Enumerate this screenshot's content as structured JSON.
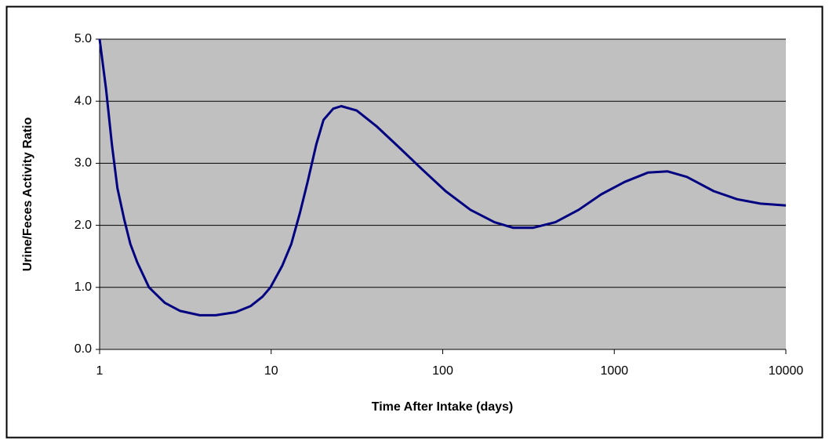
{
  "chart_data": {
    "type": "line",
    "xlabel": "Time After Intake (days)",
    "ylabel": "Urine/Feces Activity Ratio",
    "x": [
      1,
      1.09,
      1.18,
      1.27,
      1.39,
      1.51,
      1.66,
      1.94,
      2.4,
      2.95,
      3.84,
      4.75,
      6.2,
      7.6,
      8.9,
      9.9,
      11.6,
      13.1,
      14.7,
      16.3,
      18.3,
      20.2,
      23,
      25.6,
      31.5,
      41,
      56,
      76,
      104,
      145,
      200,
      258,
      335,
      454,
      620,
      840,
      1150,
      1570,
      2040,
      2650,
      3800,
      5200,
      7100,
      10000
    ],
    "values": [
      5.0,
      4.2,
      3.3,
      2.6,
      2.1,
      1.7,
      1.4,
      1.0,
      0.75,
      0.62,
      0.55,
      0.55,
      0.6,
      0.7,
      0.85,
      1.0,
      1.35,
      1.7,
      2.2,
      2.7,
      3.3,
      3.7,
      3.88,
      3.92,
      3.85,
      3.6,
      3.25,
      2.9,
      2.55,
      2.25,
      2.05,
      1.96,
      1.96,
      2.05,
      2.25,
      2.5,
      2.7,
      2.85,
      2.87,
      2.78,
      2.55,
      2.42,
      2.35,
      2.32
    ],
    "color": "#000080",
    "xscale": "log",
    "xlim": [
      1,
      10000
    ],
    "xticks": [
      1,
      10,
      100,
      1000,
      10000
    ],
    "ylim": [
      0,
      5
    ],
    "yticks": [
      {
        "value": 0,
        "label": "0.0"
      },
      {
        "value": 1,
        "label": "1.0"
      },
      {
        "value": 2,
        "label": "2.0"
      },
      {
        "value": 3,
        "label": "3.0"
      },
      {
        "value": 4,
        "label": "4.0"
      },
      {
        "value": 5,
        "label": "5.0"
      }
    ],
    "grid": true,
    "background": "#c0c0c0"
  }
}
